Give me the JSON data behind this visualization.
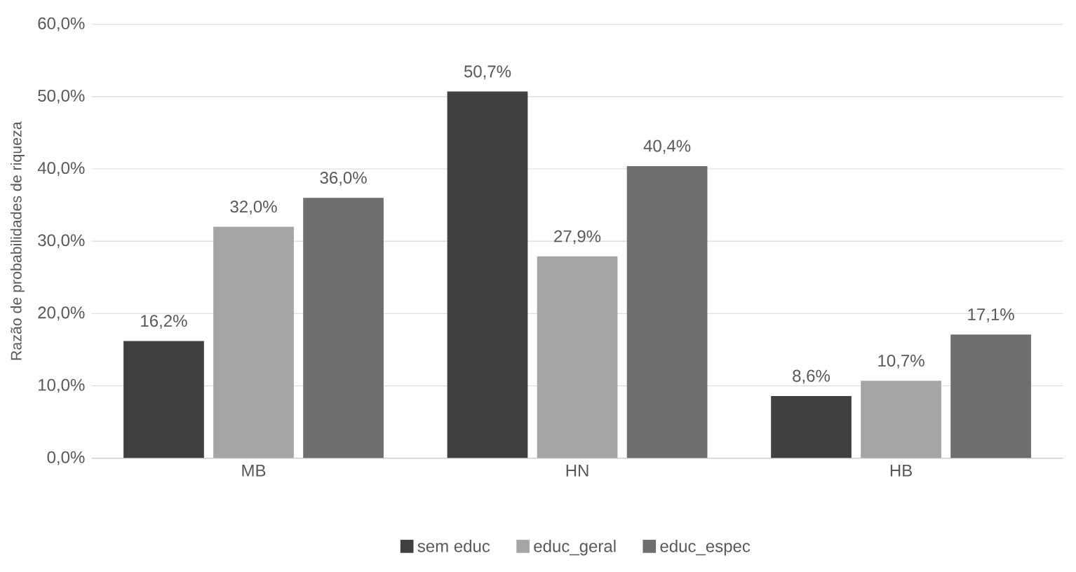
{
  "chart_data": {
    "type": "bar",
    "ylabel": "Razão de probabilidades de riqueza",
    "categories": [
      "MB",
      "HN",
      "HB"
    ],
    "series": [
      {
        "name": "sem educ",
        "color": "#404040",
        "values": [
          16.2,
          50.7,
          8.6
        ],
        "value_labels": [
          "16,2%",
          "50,7%",
          "8,6%"
        ]
      },
      {
        "name": "educ_geral",
        "color": "#a5a5a5",
        "values": [
          32.0,
          27.9,
          10.7
        ],
        "value_labels": [
          "32,0%",
          "27,9%",
          "10,7%"
        ]
      },
      {
        "name": "educ_espec",
        "color": "#6e6e6e",
        "values": [
          36.0,
          40.4,
          17.1
        ],
        "value_labels": [
          "36,0%",
          "40,4%",
          "17,1%"
        ]
      }
    ],
    "ylim": [
      0,
      60
    ],
    "yticks": [
      {
        "value": 0,
        "label": "0,0%"
      },
      {
        "value": 10,
        "label": "10,0%"
      },
      {
        "value": 20,
        "label": "20,0%"
      },
      {
        "value": 30,
        "label": "30,0%"
      },
      {
        "value": 40,
        "label": "40,0%"
      },
      {
        "value": 50,
        "label": "50,0%"
      },
      {
        "value": 60,
        "label": "60,0%"
      }
    ],
    "grid": "y",
    "legend": "bottom"
  }
}
